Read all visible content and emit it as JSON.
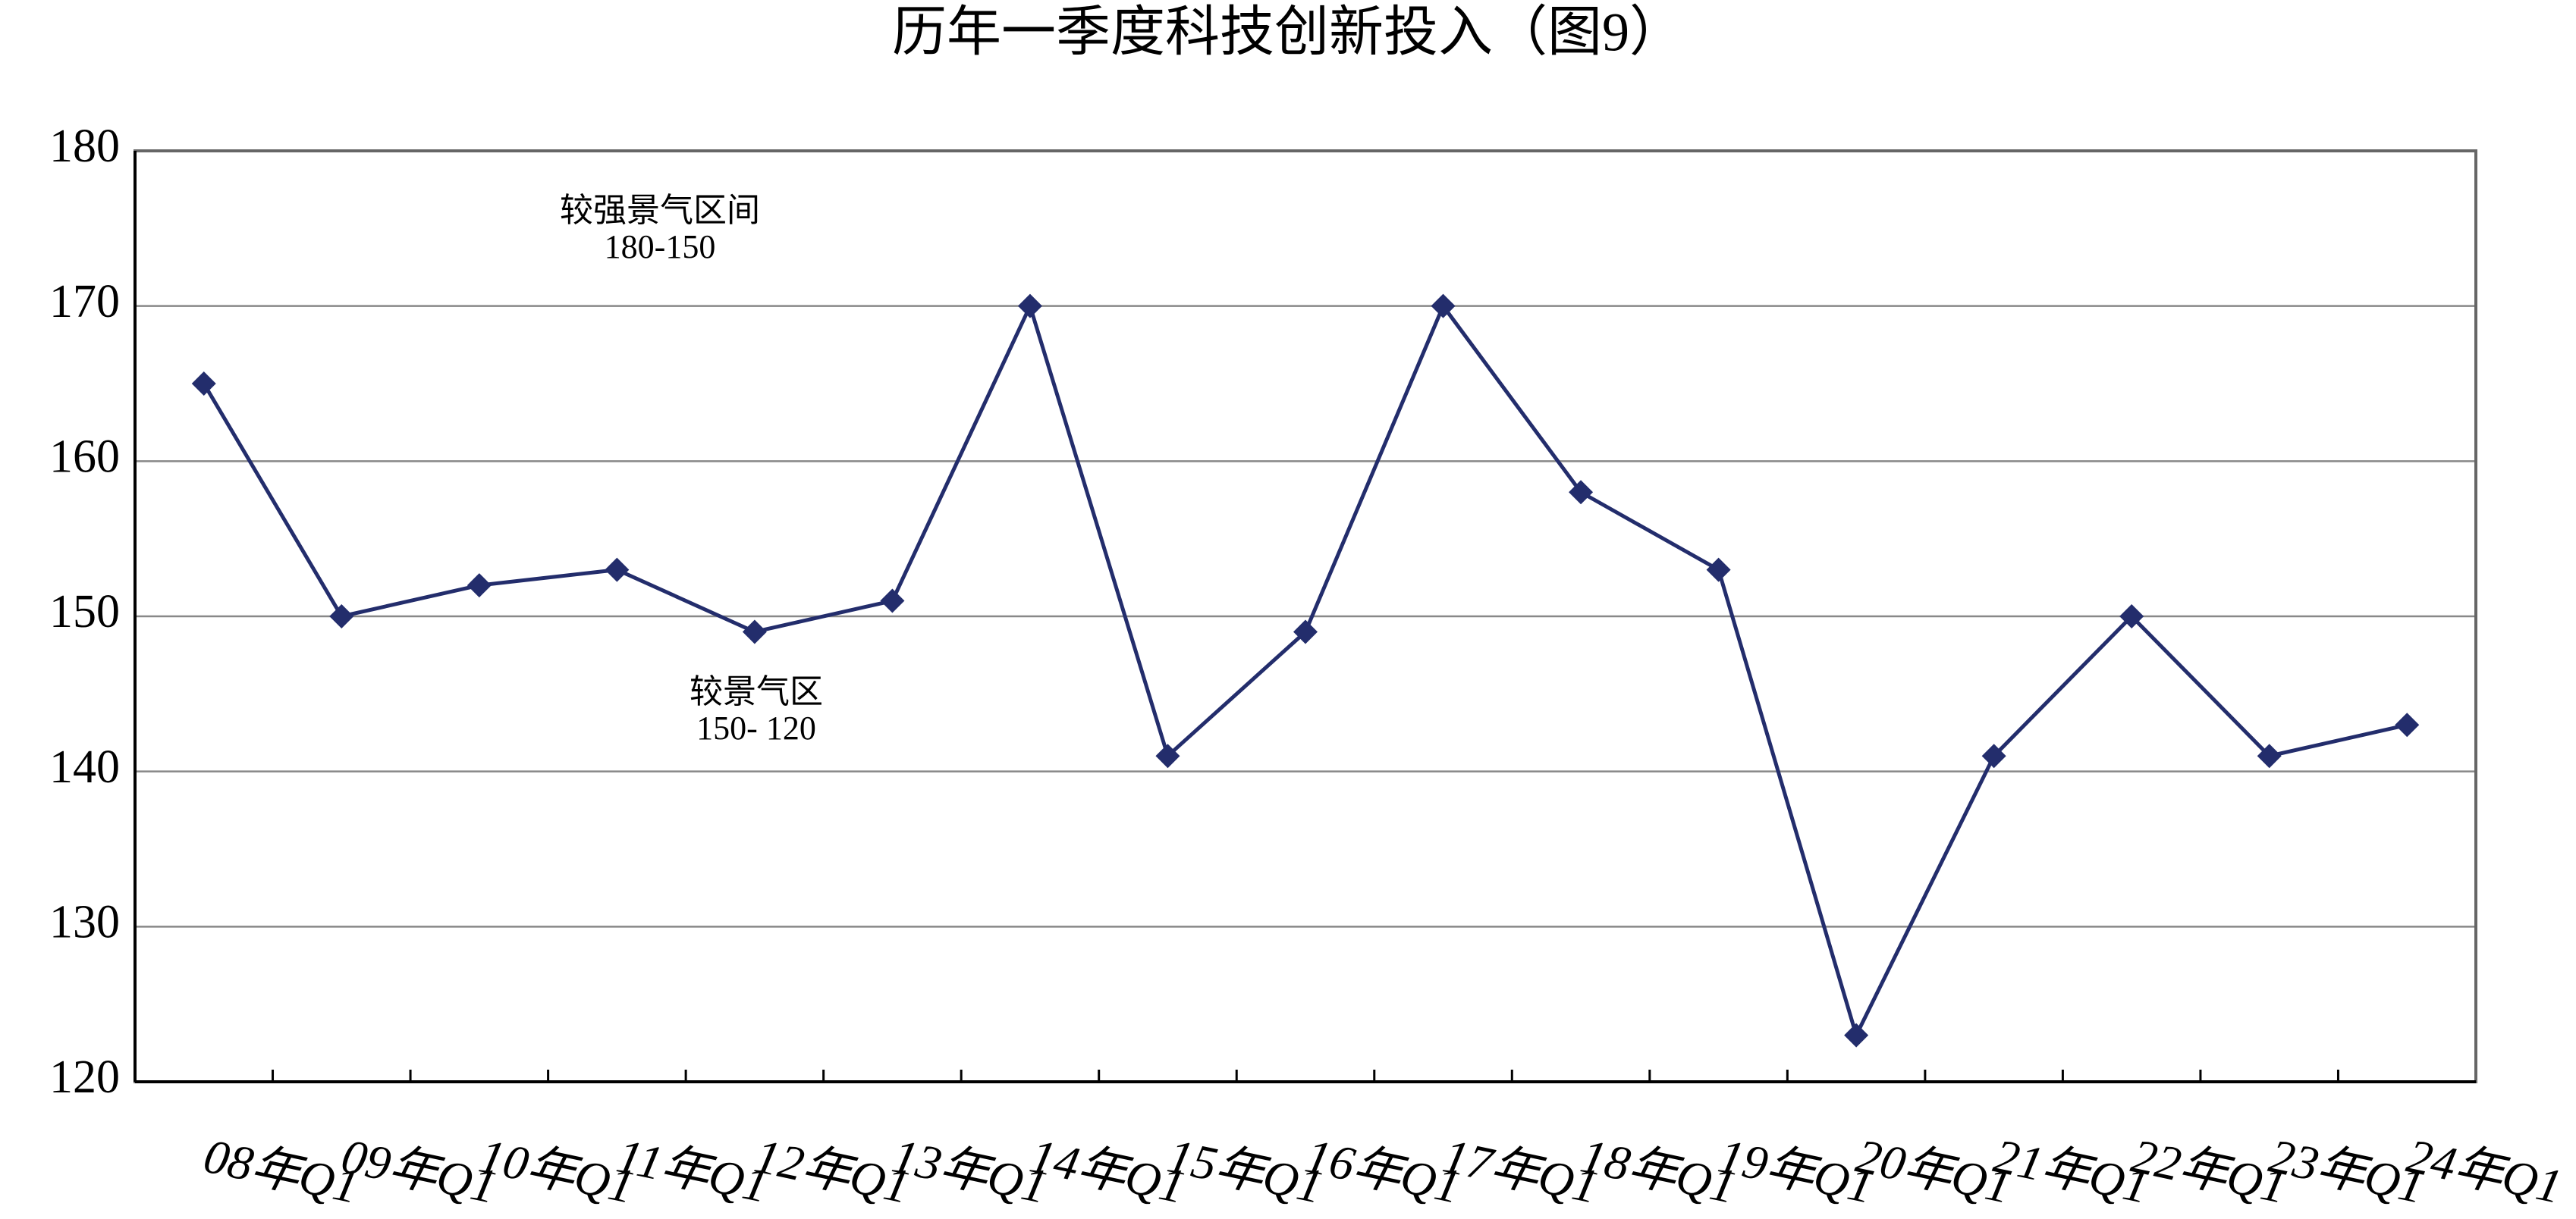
{
  "chart_data": {
    "type": "line",
    "title": "历年一季度科技创新投入（图9）",
    "categories": [
      "08年Q1",
      "09年Q1",
      "10年Q1",
      "11年Q1",
      "12年Q1",
      "13年Q1",
      "14年Q1",
      "15年Q1",
      "16年Q1",
      "17年Q1",
      "18年Q1",
      "19年Q1",
      "20年Q1",
      "21年Q1",
      "22年Q1",
      "23年Q1",
      "24年Q1"
    ],
    "series": [
      {
        "color": "#232d6c",
        "values": [
          165,
          150,
          152,
          153,
          149,
          151,
          170,
          141,
          149,
          170,
          158,
          153,
          123,
          141,
          150,
          141,
          143
        ]
      }
    ],
    "ylim": [
      120,
      180
    ],
    "yticks": [
      120,
      130,
      140,
      150,
      160,
      170,
      180
    ],
    "grid": true,
    "annotations": [
      [
        "较强景气区间",
        "180-150"
      ],
      [
        "较景气区",
        "150- 120"
      ]
    ]
  }
}
